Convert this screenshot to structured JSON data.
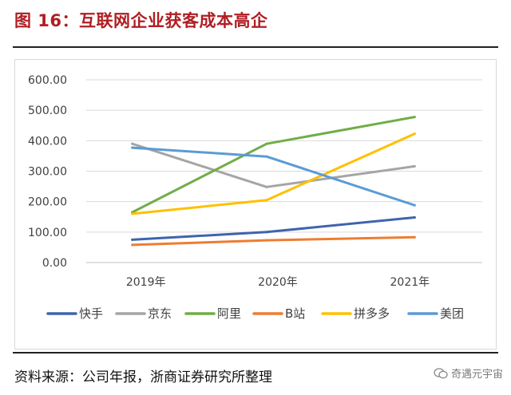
{
  "figure": {
    "title": "图 16：互联网企业获客成本高企",
    "source": "资料来源：公司年报，浙商证券研究所整理",
    "watermark": "奇遇元宇宙"
  },
  "colors": {
    "title": "#b01e23",
    "快手": "#3f64ad",
    "京东": "#a5a5a5",
    "阿里": "#70ad47",
    "B站": "#ed7d31",
    "拼多多": "#ffc000",
    "美团": "#5b9bd5"
  },
  "chart_data": {
    "type": "line",
    "title": "",
    "xlabel": "",
    "ylabel": "",
    "categories": [
      "2019年",
      "2020年",
      "2021年"
    ],
    "y_ticks": [
      "600.00",
      "500.00",
      "400.00",
      "300.00",
      "200.00",
      "100.00",
      "0.00"
    ],
    "ylim": [
      0,
      600
    ],
    "grid": true,
    "legend_position": "bottom",
    "series": [
      {
        "name": "快手",
        "values": [
          75,
          100,
          148
        ],
        "color": "#3f64ad"
      },
      {
        "name": "京东",
        "values": [
          390,
          248,
          316
        ],
        "color": "#a5a5a5"
      },
      {
        "name": "阿里",
        "values": [
          165,
          390,
          478
        ],
        "color": "#70ad47"
      },
      {
        "name": "B站",
        "values": [
          58,
          73,
          83
        ],
        "color": "#ed7d31"
      },
      {
        "name": "拼多多",
        "values": [
          160,
          205,
          423
        ],
        "color": "#ffc000"
      },
      {
        "name": "美团",
        "values": [
          377,
          348,
          188
        ],
        "color": "#5b9bd5"
      }
    ]
  }
}
